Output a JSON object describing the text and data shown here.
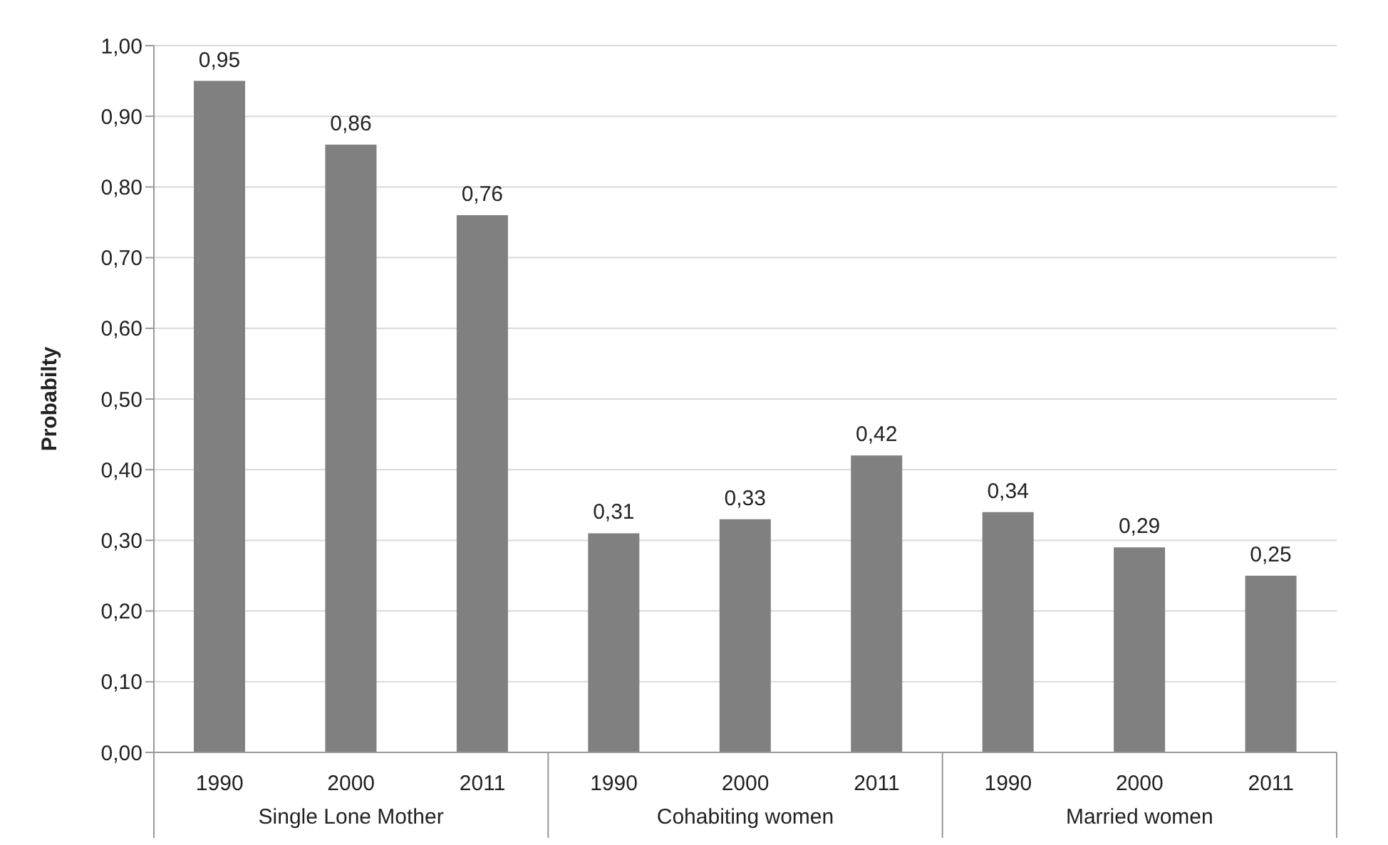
{
  "chart_data": {
    "type": "bar",
    "ylabel": "Probabilty",
    "categories": [
      "1990",
      "2000",
      "2011",
      "1990",
      "2000",
      "2011",
      "1990",
      "2000",
      "2011"
    ],
    "values": [
      0.95,
      0.86,
      0.76,
      0.31,
      0.33,
      0.42,
      0.34,
      0.29,
      0.25
    ],
    "value_labels": [
      "0,95",
      "0,86",
      "0,76",
      "0,31",
      "0,33",
      "0,42",
      "0,34",
      "0,29",
      "0,25"
    ],
    "color": "#808080",
    "ylim": [
      0,
      1
    ],
    "yticks": [
      {
        "value": 0,
        "label": "0,00"
      },
      {
        "value": 0.1,
        "label": "0,10"
      },
      {
        "value": 0.2,
        "label": "0,20"
      },
      {
        "value": 0.3,
        "label": "0,30"
      },
      {
        "value": 0.4,
        "label": "0,40"
      },
      {
        "value": 0.5,
        "label": "0,50"
      },
      {
        "value": 0.6,
        "label": "0,60"
      },
      {
        "value": 0.7,
        "label": "0,70"
      },
      {
        "value": 0.8,
        "label": "0,80"
      },
      {
        "value": 0.9,
        "label": "0,90"
      },
      {
        "value": 1,
        "label": "1,00"
      }
    ],
    "grid": "y",
    "annotations": [
      "Single Lone Mother",
      "Cohabiting women",
      "Married women"
    ]
  }
}
